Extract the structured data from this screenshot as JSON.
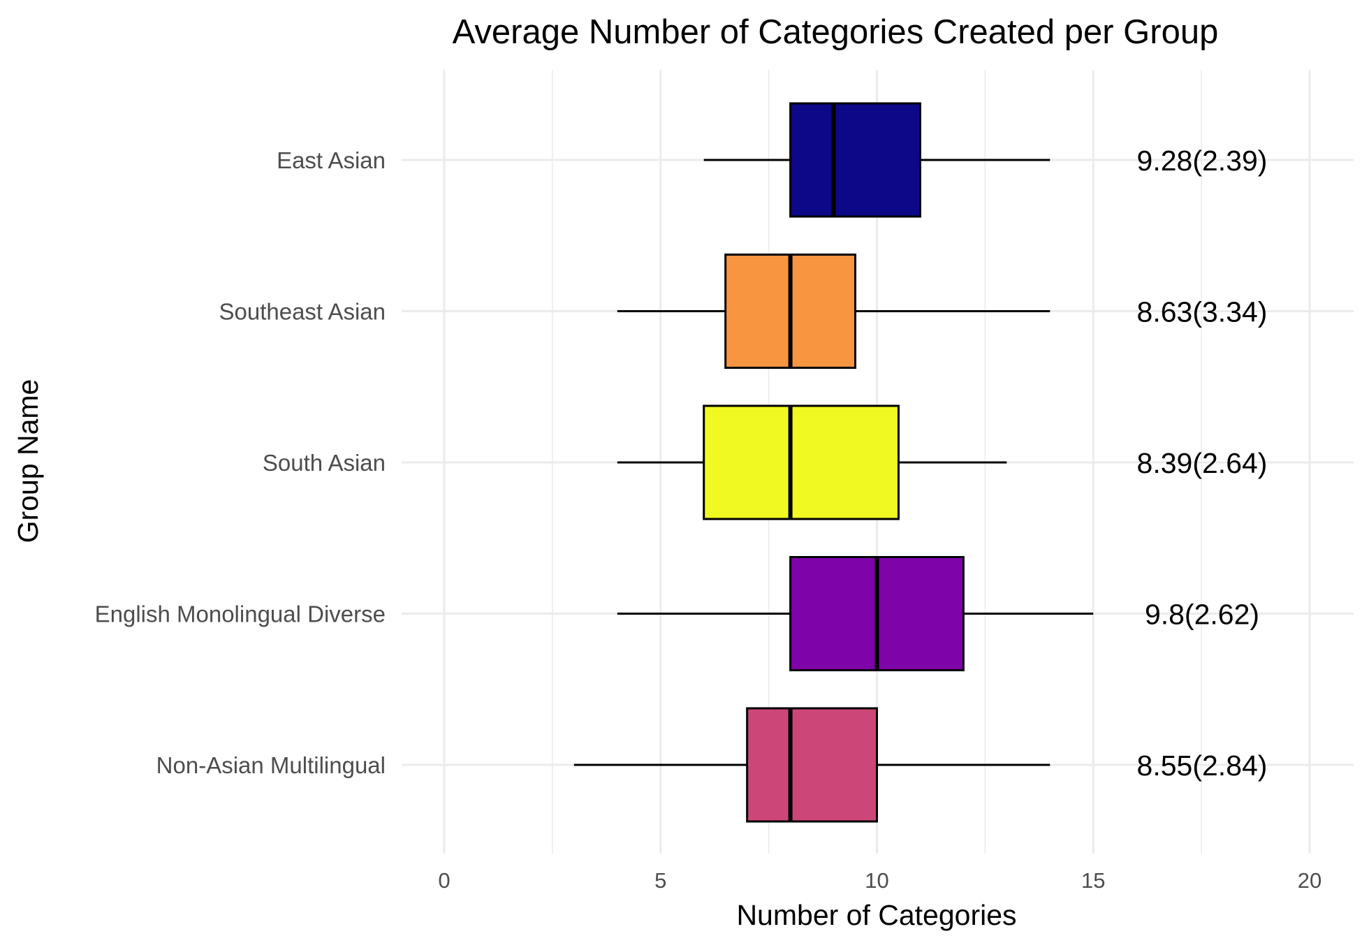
{
  "chart_data": {
    "type": "boxplot",
    "orientation": "horizontal",
    "title": "Average Number of Categories Created per Group",
    "xlabel": "Number of Categories",
    "ylabel": "Group Name",
    "xlim": [
      0,
      20
    ],
    "x_ticks": [
      0,
      5,
      10,
      15,
      20
    ],
    "x_minor_ticks": [
      2.5,
      7.5,
      12.5,
      17.5
    ],
    "grid": true,
    "legend": "none",
    "groups": [
      {
        "name": "East Asian",
        "whisker_low": 6,
        "q1": 8,
        "median": 9,
        "q3": 11,
        "whisker_high": 14,
        "label": "9.28(2.39)",
        "color": "#0d0887"
      },
      {
        "name": "Southeast Asian",
        "whisker_low": 4,
        "q1": 6.5,
        "median": 8,
        "q3": 9.5,
        "whisker_high": 14,
        "label": "8.63(3.34)",
        "color": "#f89540"
      },
      {
        "name": "South Asian",
        "whisker_low": 4,
        "q1": 6,
        "median": 8,
        "q3": 10.5,
        "whisker_high": 13,
        "label": "8.39(2.64)",
        "color": "#f0f921"
      },
      {
        "name": "English Monolingual Diverse",
        "whisker_low": 4,
        "q1": 8,
        "median": 10,
        "q3": 12,
        "whisker_high": 15,
        "label": "9.8(2.62)",
        "color": "#7e03a8"
      },
      {
        "name": "Non-Asian Multilingual",
        "whisker_low": 3,
        "q1": 7,
        "median": 8,
        "q3": 10,
        "whisker_high": 14,
        "label": "8.55(2.84)",
        "color": "#cc4778"
      }
    ]
  }
}
